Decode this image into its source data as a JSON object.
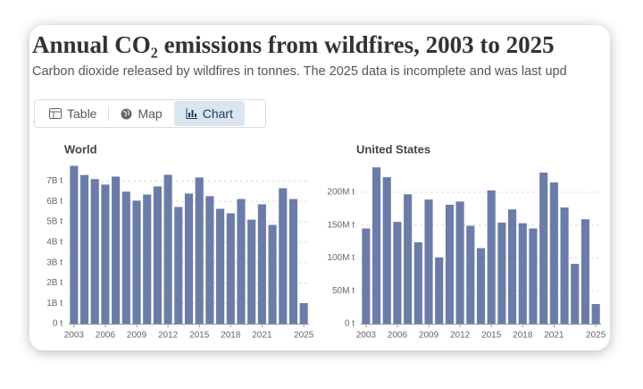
{
  "header": {
    "title": "Annual CO₂ emissions from wildfires, 2003 to 2025",
    "subtitle": [
      "Carbon dioxide released by ",
      "wildfires",
      " in tonnes. The 2025 data is incomplete and was last upd"
    ]
  },
  "tabs": [
    "Table",
    "Map",
    "Chart"
  ],
  "chart_data": [
    {
      "type": "bar",
      "title": "World",
      "color": "#6b7ca8",
      "grid": true,
      "x": [
        2003,
        2004,
        2005,
        2006,
        2007,
        2008,
        2009,
        2010,
        2011,
        2012,
        2013,
        2014,
        2015,
        2016,
        2017,
        2018,
        2019,
        2020,
        2021,
        2022,
        2023,
        2024,
        2025
      ],
      "values": [
        7750000000,
        7300000000,
        7100000000,
        6830000000,
        7220000000,
        6480000000,
        6040000000,
        6340000000,
        6740000000,
        7310000000,
        5730000000,
        6390000000,
        7180000000,
        6260000000,
        5640000000,
        5420000000,
        6120000000,
        5110000000,
        5860000000,
        4850000000,
        6650000000,
        6120000000,
        1010000000
      ],
      "xlim": [
        2002.5,
        2025.5
      ],
      "xticks": [
        2003,
        2006,
        2009,
        2012,
        2015,
        2018,
        2021,
        2025
      ],
      "ylim": [
        0,
        7900000000
      ],
      "yticks": [
        {
          "value": 0,
          "label": "0 t"
        },
        {
          "value": 1000000000,
          "label": "1B t"
        },
        {
          "value": 2000000000,
          "label": "2B t"
        },
        {
          "value": 3000000000,
          "label": "3B t"
        },
        {
          "value": 4000000000,
          "label": "4B t"
        },
        {
          "value": 5000000000,
          "label": "5B t"
        },
        {
          "value": 6000000000,
          "label": "6B t"
        },
        {
          "value": 7000000000,
          "label": "7B t"
        }
      ]
    },
    {
      "type": "bar",
      "title": "United States",
      "color": "#6b7ca8",
      "grid": true,
      "x": [
        2003,
        2004,
        2005,
        2006,
        2007,
        2008,
        2009,
        2010,
        2011,
        2012,
        2013,
        2014,
        2015,
        2016,
        2017,
        2018,
        2019,
        2020,
        2021,
        2022,
        2023,
        2024,
        2025
      ],
      "values": [
        145000000,
        238000000,
        223000000,
        155000000,
        197000000,
        124000000,
        189000000,
        101000000,
        181000000,
        186000000,
        149000000,
        115000000,
        203000000,
        154000000,
        174000000,
        153000000,
        145000000,
        230000000,
        215000000,
        177000000,
        91000000,
        159000000,
        30000000
      ],
      "xlim": [
        2002.5,
        2025.5
      ],
      "xticks": [
        2003,
        2006,
        2009,
        2012,
        2015,
        2018,
        2021,
        2025
      ],
      "ylim": [
        0,
        245000000
      ],
      "yticks": [
        {
          "value": 0,
          "label": "0 t"
        },
        {
          "value": 50000000,
          "label": "50M t"
        },
        {
          "value": 100000000,
          "label": "100M t"
        },
        {
          "value": 150000000,
          "label": "150M t"
        },
        {
          "value": 200000000,
          "label": "200M t"
        }
      ]
    }
  ]
}
